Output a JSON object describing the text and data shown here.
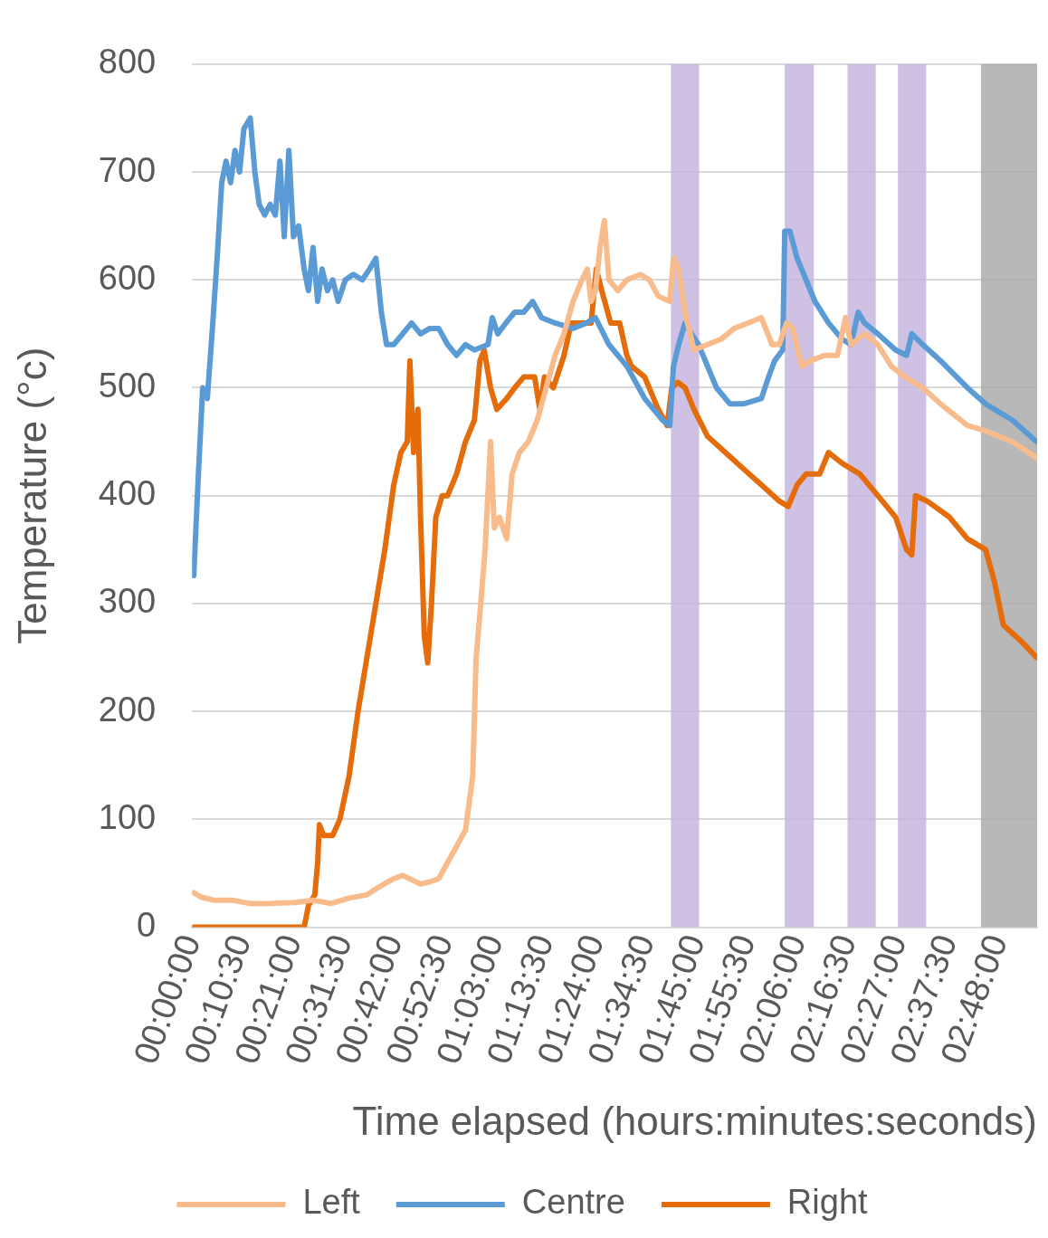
{
  "chart_data": {
    "type": "line",
    "xlabel": "Time elapsed (hours:minutes:seconds)",
    "ylabel": "Temperature (°c)",
    "xlim": [
      0,
      2.933
    ],
    "ylim": [
      0,
      800
    ],
    "yticks": [
      0,
      100,
      200,
      300,
      400,
      500,
      600,
      700,
      800
    ],
    "xticks": [
      {
        "value": 0,
        "label": "00:00:00"
      },
      {
        "value": 0.175,
        "label": "00:10:30"
      },
      {
        "value": 0.35,
        "label": "00:21:00"
      },
      {
        "value": 0.525,
        "label": "00:31:30"
      },
      {
        "value": 0.7,
        "label": "00:42:00"
      },
      {
        "value": 0.875,
        "label": "00:52:30"
      },
      {
        "value": 1.05,
        "label": "01:03:00"
      },
      {
        "value": 1.225,
        "label": "01:13:30"
      },
      {
        "value": 1.4,
        "label": "01:24:00"
      },
      {
        "value": 1.575,
        "label": "01:34:30"
      },
      {
        "value": 1.75,
        "label": "01:45:00"
      },
      {
        "value": 1.925,
        "label": "01:55:30"
      },
      {
        "value": 2.1,
        "label": "02:06:00"
      },
      {
        "value": 2.275,
        "label": "02:16:30"
      },
      {
        "value": 2.45,
        "label": "02:27:00"
      },
      {
        "value": 2.625,
        "label": "02:37:30"
      },
      {
        "value": 2.8,
        "label": "02:48:00"
      }
    ],
    "grid": "y",
    "legend": "bottom",
    "marker": "none",
    "line_style": "solid",
    "series": [
      {
        "name": "Left",
        "color": "#f8bc8c",
        "x": [
          0.006,
          0.031,
          0.078,
          0.14,
          0.202,
          0.264,
          0.358,
          0.42,
          0.482,
          0.545,
          0.607,
          0.653,
          0.7,
          0.731,
          0.762,
          0.793,
          0.825,
          0.856,
          0.887,
          0.918,
          0.949,
          0.974,
          0.986,
          1.002,
          1.017,
          1.036,
          1.049,
          1.067,
          1.092,
          1.111,
          1.136,
          1.167,
          1.198,
          1.229,
          1.26,
          1.291,
          1.322,
          1.353,
          1.372,
          1.385,
          1.4,
          1.416,
          1.431,
          1.447,
          1.478,
          1.509,
          1.556,
          1.587,
          1.618,
          1.658,
          1.671,
          1.689,
          1.711,
          1.742,
          1.789,
          1.836,
          1.882,
          1.929,
          1.976,
          2.013,
          2.038,
          2.063,
          2.085,
          2.116,
          2.147,
          2.194,
          2.24,
          2.268,
          2.287,
          2.334,
          2.38,
          2.427,
          2.474,
          2.536,
          2.598,
          2.691,
          2.754,
          2.847,
          2.931
        ],
        "values": [
          32,
          28,
          25,
          25,
          22,
          22,
          23,
          25,
          22,
          27,
          30,
          38,
          45,
          48,
          44,
          40,
          42,
          45,
          60,
          75,
          90,
          140,
          250,
          300,
          350,
          450,
          370,
          380,
          360,
          420,
          440,
          450,
          470,
          500,
          530,
          550,
          580,
          600,
          610,
          580,
          590,
          630,
          655,
          600,
          590,
          600,
          605,
          600,
          585,
          580,
          620,
          610,
          570,
          535,
          540,
          545,
          555,
          560,
          565,
          540,
          540,
          560,
          555,
          520,
          525,
          530,
          530,
          565,
          540,
          550,
          540,
          520,
          510,
          500,
          485,
          465,
          460,
          450,
          435
        ]
      },
      {
        "name": "Centre",
        "color": "#5b9bd5",
        "x": [
          0.006,
          0.022,
          0.037,
          0.053,
          0.072,
          0.087,
          0.103,
          0.118,
          0.134,
          0.149,
          0.165,
          0.18,
          0.202,
          0.218,
          0.233,
          0.252,
          0.271,
          0.289,
          0.305,
          0.32,
          0.336,
          0.352,
          0.37,
          0.389,
          0.404,
          0.42,
          0.436,
          0.451,
          0.47,
          0.488,
          0.507,
          0.532,
          0.56,
          0.591,
          0.616,
          0.638,
          0.657,
          0.675,
          0.7,
          0.731,
          0.762,
          0.793,
          0.825,
          0.856,
          0.887,
          0.918,
          0.949,
          0.98,
          1.027,
          1.042,
          1.061,
          1.089,
          1.12,
          1.151,
          1.182,
          1.213,
          1.26,
          1.322,
          1.369,
          1.4,
          1.447,
          1.509,
          1.571,
          1.633,
          1.658,
          1.671,
          1.689,
          1.711,
          1.733,
          1.758,
          1.789,
          1.82,
          1.867,
          1.913,
          1.976,
          2.001,
          2.022,
          2.05,
          2.057,
          2.075,
          2.1,
          2.131,
          2.162,
          2.209,
          2.256,
          2.287,
          2.312,
          2.334,
          2.38,
          2.442,
          2.48,
          2.498,
          2.536,
          2.598,
          2.691,
          2.754,
          2.847,
          2.931
        ],
        "values": [
          326,
          420,
          500,
          490,
          560,
          620,
          690,
          710,
          690,
          720,
          700,
          740,
          750,
          700,
          670,
          660,
          670,
          660,
          710,
          640,
          720,
          640,
          650,
          610,
          590,
          630,
          580,
          610,
          590,
          600,
          580,
          600,
          605,
          600,
          610,
          620,
          570,
          540,
          540,
          550,
          560,
          550,
          555,
          555,
          540,
          530,
          540,
          535,
          540,
          565,
          550,
          560,
          570,
          570,
          580,
          565,
          560,
          555,
          560,
          565,
          540,
          520,
          490,
          470,
          465,
          520,
          540,
          560,
          550,
          540,
          520,
          500,
          485,
          485,
          490,
          510,
          525,
          535,
          645,
          645,
          620,
          600,
          580,
          560,
          545,
          540,
          570,
          560,
          550,
          535,
          530,
          550,
          540,
          525,
          500,
          485,
          470,
          450
        ]
      },
      {
        "name": "Right",
        "color": "#e46c0a",
        "x": [
          0.006,
          0.389,
          0.404,
          0.426,
          0.436,
          0.442,
          0.457,
          0.488,
          0.513,
          0.545,
          0.576,
          0.607,
          0.638,
          0.669,
          0.7,
          0.725,
          0.747,
          0.756,
          0.769,
          0.784,
          0.793,
          0.806,
          0.818,
          0.831,
          0.846,
          0.868,
          0.887,
          0.918,
          0.949,
          0.98,
          0.999,
          1.014,
          1.036,
          1.058,
          1.092,
          1.12,
          1.151,
          1.189,
          1.207,
          1.223,
          1.254,
          1.291,
          1.316,
          1.338,
          1.385,
          1.403,
          1.422,
          1.453,
          1.484,
          1.509,
          1.525,
          1.571,
          1.618,
          1.649,
          1.665,
          1.686,
          1.711,
          1.742,
          1.789,
          1.851,
          1.913,
          1.976,
          2.038,
          2.069,
          2.1,
          2.131,
          2.178,
          2.209,
          2.256,
          2.318,
          2.38,
          2.442,
          2.48,
          2.498,
          2.511,
          2.551,
          2.629,
          2.691,
          2.754,
          2.785,
          2.816,
          2.878,
          2.931
        ],
        "values": [
          0,
          0,
          20,
          30,
          60,
          95,
          85,
          85,
          100,
          140,
          200,
          250,
          300,
          350,
          410,
          440,
          450,
          525,
          440,
          480,
          380,
          270,
          245,
          300,
          380,
          400,
          400,
          420,
          450,
          470,
          525,
          535,
          500,
          480,
          490,
          500,
          510,
          510,
          480,
          510,
          500,
          530,
          560,
          560,
          560,
          610,
          590,
          560,
          560,
          530,
          520,
          510,
          480,
          465,
          500,
          505,
          500,
          480,
          455,
          440,
          425,
          410,
          395,
          390,
          410,
          420,
          420,
          440,
          430,
          420,
          400,
          380,
          350,
          345,
          400,
          395,
          380,
          360,
          350,
          320,
          280,
          265,
          250
        ]
      }
    ],
    "bands": [
      {
        "axis": "x",
        "from": 1.662,
        "to": 1.76,
        "color": "#c3b1dc"
      },
      {
        "axis": "x",
        "from": 2.057,
        "to": 2.158,
        "color": "#c3b1dc"
      },
      {
        "axis": "x",
        "from": 2.275,
        "to": 2.373,
        "color": "#c3b1dc"
      },
      {
        "axis": "x",
        "from": 2.45,
        "to": 2.548,
        "color": "#c3b1dc"
      },
      {
        "axis": "x",
        "from": 2.738,
        "to": 2.933,
        "color": "#a6a6a6"
      }
    ]
  }
}
